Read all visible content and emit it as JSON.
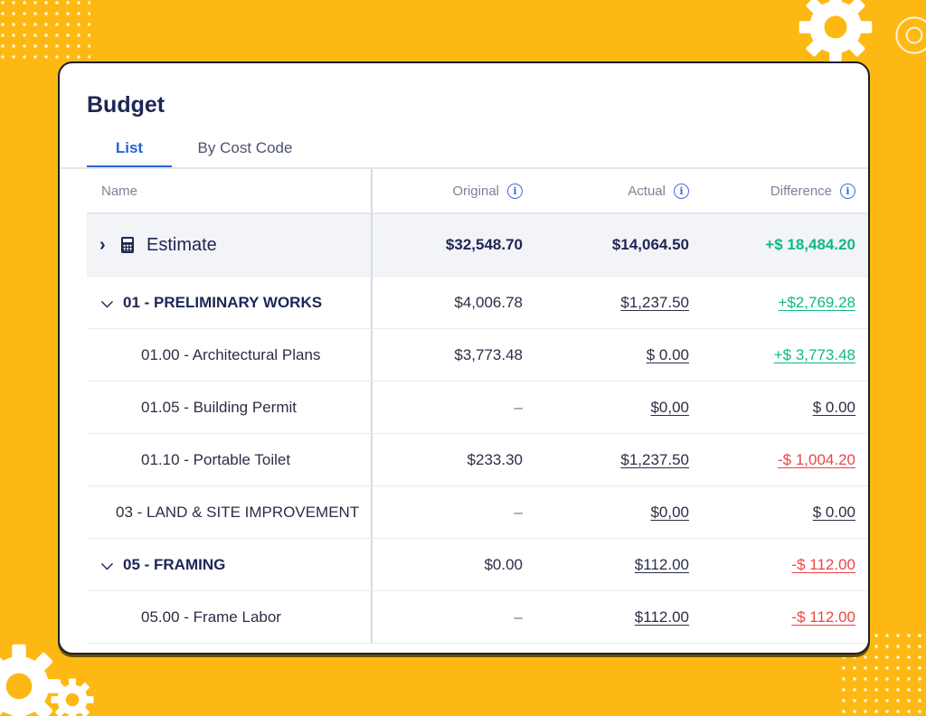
{
  "budget": {
    "title": "Budget",
    "tabs": [
      {
        "label": "List"
      },
      {
        "label": "By Cost Code"
      }
    ],
    "columns": {
      "name": "Name",
      "original": "Original",
      "actual": "Actual",
      "difference": "Difference"
    },
    "estimate": {
      "label": "Estimate",
      "original": "$32,548.70",
      "actual": "$14,064.50",
      "difference": "+$ 18,484.20"
    },
    "rows": [
      {
        "name": "01 - PRELIMINARY WORKS",
        "original": "$4,006.78",
        "actual": "$1,237.50",
        "difference": "+$2,769.28"
      },
      {
        "name": "01.00 - Architectural Plans",
        "original": "$3,773.48",
        "actual": "$ 0.00",
        "difference": "+$ 3,773.48"
      },
      {
        "name": "01.05 - Building Permit",
        "original": "–",
        "actual": "$0,00",
        "difference": "$ 0.00"
      },
      {
        "name": "01.10 - Portable Toilet",
        "original": "$233.30",
        "actual": "$1,237.50",
        "difference": "-$ 1,004.20"
      },
      {
        "name": "03 - LAND & SITE IMPROVEMENT",
        "original": "–",
        "actual": "$0,00",
        "difference": "$ 0.00"
      },
      {
        "name": "05 - FRAMING",
        "original": "$0.00",
        "actual": "$112.00",
        "difference": "-$ 112.00"
      },
      {
        "name": "05.00 - Frame Labor",
        "original": "–",
        "actual": "$112.00",
        "difference": "-$ 112.00"
      }
    ],
    "icons": {
      "expand": "chevron-right-icon",
      "collapse": "chevron-down-icon",
      "calculator": "calculator-icon",
      "info": "info-icon"
    },
    "colors": {
      "background": "#FDB813",
      "accent": "#2563D9",
      "positive": "#10B981",
      "negative": "#EF4444",
      "title": "#1D2654"
    }
  }
}
